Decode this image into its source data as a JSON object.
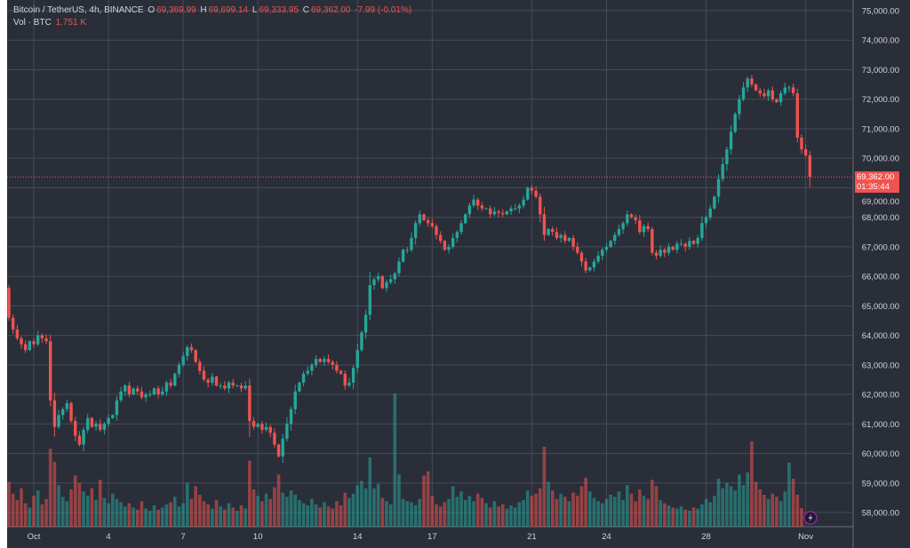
{
  "header": {
    "symbol": "Bitcoin / TetherUS, 4h, BINANCE",
    "o_label": "O",
    "o": "69,369.99",
    "h_label": "H",
    "h": "69,699.14",
    "l_label": "L",
    "l": "69,333.95",
    "c_label": "C",
    "c": "69,362.00",
    "change": "-7.99 (-0.01%)",
    "vol_label": "Vol · BTC",
    "vol": "1.751 K"
  },
  "last_price_label": {
    "price": "69,362.00",
    "countdown": "01:35:44"
  },
  "colors": {
    "background": "#2a2e39",
    "grid": "#474b57",
    "up": "#26a69a",
    "down": "#ef5350",
    "text": "#d1d4dc",
    "accent_icon": "#9c27b0"
  },
  "icons": {
    "bottom_right": "lightning-icon"
  },
  "chart_data": {
    "type": "candlestick",
    "title": "Bitcoin / TetherUS, 4h, BINANCE",
    "interval": "4h",
    "first_open": 65600,
    "close": [
      64600,
      64200,
      63900,
      63700,
      63500,
      63800,
      63700,
      64000,
      63900,
      63800,
      61800,
      60900,
      61300,
      61500,
      61700,
      61100,
      60600,
      60300,
      60800,
      61200,
      60900,
      61000,
      60800,
      61000,
      61200,
      61300,
      61800,
      62100,
      62300,
      62000,
      62200,
      62100,
      61900,
      62000,
      62000,
      62200,
      62000,
      62100,
      62400,
      62300,
      62700,
      63000,
      63300,
      63600,
      63500,
      63100,
      62800,
      62500,
      62400,
      62600,
      62300,
      62300,
      62200,
      62400,
      62300,
      62300,
      62200,
      62300,
      61100,
      60900,
      61000,
      60800,
      60900,
      60700,
      60300,
      59900,
      60500,
      61000,
      61500,
      62100,
      62400,
      62700,
      62800,
      63000,
      63200,
      63100,
      63200,
      63100,
      63000,
      62800,
      62700,
      62300,
      62400,
      62900,
      63500,
      64100,
      64700,
      65700,
      65900,
      66000,
      65600,
      65800,
      65900,
      66100,
      66500,
      66900,
      66900,
      67300,
      67800,
      68100,
      67900,
      67800,
      67700,
      67400,
      67200,
      66900,
      67000,
      67300,
      67500,
      67800,
      68100,
      68400,
      68600,
      68400,
      68300,
      68300,
      68100,
      68200,
      68150,
      68100,
      68200,
      68300,
      68300,
      68400,
      68600,
      69000,
      68900,
      68700,
      68100,
      67400,
      67600,
      67500,
      67300,
      67400,
      67200,
      67300,
      67000,
      66800,
      66500,
      66200,
      66300,
      66500,
      66700,
      66900,
      67000,
      67200,
      67400,
      67600,
      67800,
      68100,
      68000,
      67900,
      67500,
      67700,
      67600,
      66800,
      66700,
      66900,
      66800,
      67000,
      66900,
      67100,
      67100,
      67000,
      67200,
      67100,
      67300,
      67800,
      68000,
      68300,
      68700,
      69300,
      69800,
      70300,
      70900,
      71500,
      72000,
      72400,
      72700,
      72500,
      72300,
      72200,
      72100,
      72300,
      72000,
      71900,
      72200,
      72400,
      72400,
      72200,
      70700,
      70300,
      70100,
      69362
    ],
    "volume_k": [
      4.2,
      3.1,
      2.5,
      3.6,
      2.2,
      1.8,
      2.9,
      3.4,
      2.1,
      2.6,
      7.3,
      6.1,
      3.9,
      2.8,
      2.4,
      3.5,
      4.8,
      4.1,
      3.3,
      2.9,
      3.6,
      2.5,
      4.4,
      2.7,
      2.2,
      3.1,
      2.6,
      2.3,
      1.9,
      2.2,
      1.8,
      1.6,
      2.4,
      1.7,
      1.5,
      2.0,
      1.6,
      1.8,
      2.1,
      2.3,
      2.8,
      1.9,
      2.2,
      4.1,
      2.6,
      3.8,
      3.0,
      2.4,
      2.1,
      1.7,
      2.5,
      1.9,
      1.6,
      2.2,
      1.8,
      1.5,
      2.0,
      1.7,
      6.2,
      3.5,
      2.9,
      2.4,
      3.1,
      2.6,
      3.7,
      4.9,
      3.2,
      2.8,
      3.4,
      3.0,
      2.5,
      2.2,
      2.0,
      2.6,
      2.1,
      1.8,
      2.3,
      1.9,
      1.7,
      2.4,
      2.0,
      3.2,
      2.7,
      3.1,
      3.9,
      4.3,
      3.6,
      6.5,
      3.6,
      4.0,
      2.7,
      2.4,
      2.1,
      12.5,
      4.9,
      2.6,
      2.4,
      2.3,
      2.0,
      2.6,
      4.8,
      5.2,
      2.9,
      2.1,
      1.9,
      2.3,
      2.6,
      3.8,
      2.8,
      3.3,
      2.5,
      2.9,
      2.4,
      3.1,
      2.7,
      2.2,
      1.8,
      2.4,
      1.9,
      2.1,
      1.7,
      2.0,
      1.8,
      2.3,
      2.5,
      3.4,
      2.9,
      3.1,
      3.6,
      7.5,
      4.2,
      3.4,
      2.6,
      3.1,
      2.8,
      2.4,
      3.2,
      2.9,
      3.8,
      4.6,
      3.3,
      2.7,
      2.4,
      2.2,
      2.6,
      3.0,
      2.8,
      3.3,
      2.5,
      3.9,
      3.1,
      2.4,
      3.5,
      2.9,
      2.6,
      4.4,
      3.8,
      2.5,
      2.2,
      2.0,
      1.8,
      1.7,
      1.9,
      1.6,
      1.5,
      1.8,
      1.7,
      2.1,
      2.6,
      2.3,
      2.9,
      4.5,
      3.6,
      4.1,
      3.8,
      3.4,
      4.9,
      3.9,
      5.1,
      8.0,
      4.2,
      3.5,
      3.0,
      2.6,
      3.1,
      2.8,
      2.4,
      3.3,
      6.0,
      4.5,
      3.0,
      1.751
    ],
    "x_ticks": [
      "Oct",
      "4",
      "7",
      "10",
      "14",
      "17",
      "21",
      "24",
      "28",
      "Nov"
    ],
    "y_ticks": [
      "58,000.00",
      "59,000.00",
      "60,000.00",
      "61,000.00",
      "62,000.00",
      "63,000.00",
      "64,000.00",
      "65,000.00",
      "66,000.00",
      "67,000.00",
      "68,000.00",
      "69,000.00",
      "70,000.00",
      "71,000.00",
      "72,000.00",
      "73,000.00",
      "74,000.00",
      "75,000.00"
    ],
    "ylim": [
      58000,
      75000
    ],
    "grid": true
  }
}
